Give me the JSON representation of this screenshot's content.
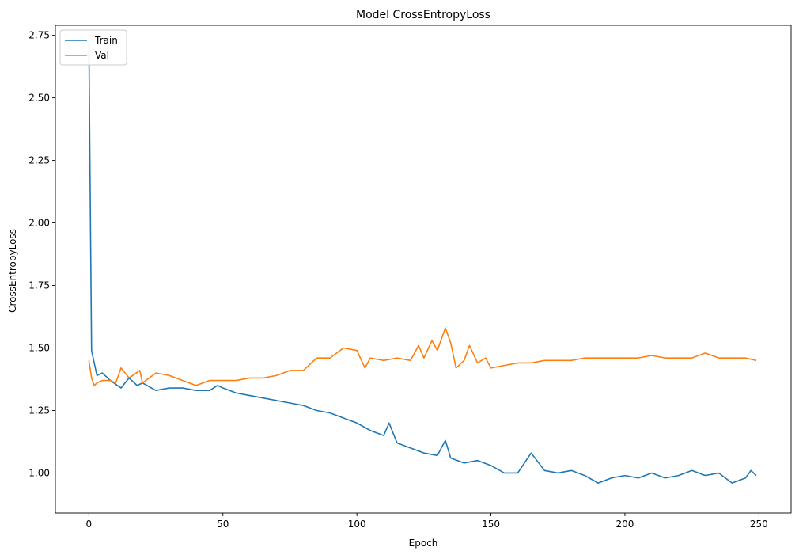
{
  "chart_data": {
    "type": "line",
    "title": "Model CrossEntropyLoss",
    "xlabel": "Epoch",
    "ylabel": "CrossEntropyLoss",
    "xlim": [
      -12.5,
      262
    ],
    "ylim": [
      0.84,
      2.79
    ],
    "xticks": [
      0,
      50,
      100,
      150,
      200,
      250
    ],
    "yticks": [
      1.0,
      1.25,
      1.5,
      1.75,
      2.0,
      2.25,
      2.5,
      2.75
    ],
    "xtick_labels": [
      "0",
      "50",
      "100",
      "150",
      "200",
      "250"
    ],
    "ytick_labels": [
      "1.00",
      "1.25",
      "1.50",
      "1.75",
      "2.00",
      "2.25",
      "2.50",
      "2.75"
    ],
    "legend_position": "top-left",
    "grid": false,
    "series": [
      {
        "name": "Train",
        "color": "#1f77b4",
        "x": [
          0,
          1,
          3,
          5,
          8,
          12,
          15,
          18,
          20,
          25,
          30,
          35,
          40,
          45,
          48,
          50,
          55,
          60,
          65,
          70,
          75,
          80,
          85,
          90,
          95,
          100,
          105,
          110,
          112,
          115,
          120,
          125,
          130,
          133,
          135,
          140,
          145,
          150,
          155,
          160,
          165,
          170,
          175,
          180,
          185,
          190,
          195,
          200,
          205,
          210,
          215,
          220,
          225,
          230,
          235,
          240,
          245,
          247,
          249
        ],
        "values": [
          2.72,
          1.49,
          1.39,
          1.4,
          1.37,
          1.34,
          1.38,
          1.35,
          1.36,
          1.33,
          1.34,
          1.34,
          1.33,
          1.33,
          1.35,
          1.34,
          1.32,
          1.31,
          1.3,
          1.29,
          1.28,
          1.27,
          1.25,
          1.24,
          1.22,
          1.2,
          1.17,
          1.15,
          1.2,
          1.12,
          1.1,
          1.08,
          1.07,
          1.13,
          1.06,
          1.04,
          1.05,
          1.03,
          1.0,
          1.0,
          1.08,
          1.01,
          1.0,
          1.01,
          0.99,
          0.96,
          0.98,
          0.99,
          0.98,
          1.0,
          0.98,
          0.99,
          1.01,
          0.99,
          1.0,
          0.96,
          0.98,
          1.01,
          0.99
        ]
      },
      {
        "name": "Val",
        "color": "#ff7f0e",
        "x": [
          0,
          1,
          2,
          3,
          5,
          8,
          10,
          12,
          15,
          19,
          20,
          25,
          30,
          35,
          40,
          45,
          50,
          55,
          60,
          65,
          70,
          75,
          80,
          85,
          90,
          95,
          100,
          103,
          105,
          110,
          115,
          120,
          123,
          125,
          128,
          130,
          133,
          135,
          137,
          140,
          142,
          145,
          148,
          150,
          155,
          160,
          165,
          170,
          175,
          180,
          185,
          190,
          195,
          200,
          205,
          210,
          215,
          220,
          225,
          230,
          235,
          240,
          245,
          249
        ],
        "values": [
          1.45,
          1.38,
          1.35,
          1.36,
          1.37,
          1.37,
          1.36,
          1.42,
          1.38,
          1.41,
          1.36,
          1.4,
          1.39,
          1.37,
          1.35,
          1.37,
          1.37,
          1.37,
          1.38,
          1.38,
          1.39,
          1.41,
          1.41,
          1.46,
          1.46,
          1.5,
          1.49,
          1.42,
          1.46,
          1.45,
          1.46,
          1.45,
          1.51,
          1.46,
          1.53,
          1.49,
          1.58,
          1.52,
          1.42,
          1.45,
          1.51,
          1.44,
          1.46,
          1.42,
          1.43,
          1.44,
          1.44,
          1.45,
          1.45,
          1.45,
          1.46,
          1.46,
          1.46,
          1.46,
          1.46,
          1.47,
          1.46,
          1.46,
          1.46,
          1.48,
          1.46,
          1.46,
          1.46,
          1.45
        ]
      }
    ]
  }
}
